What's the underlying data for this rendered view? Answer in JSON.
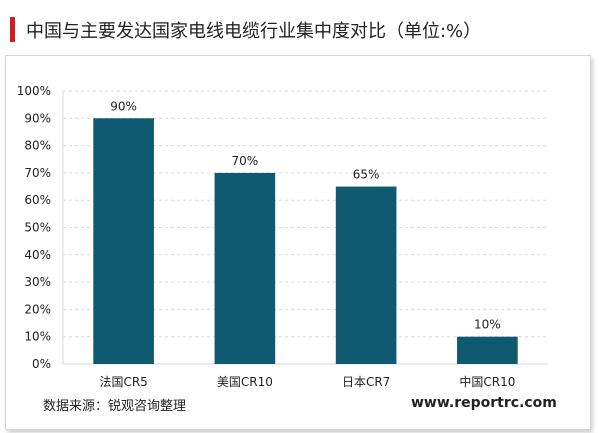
{
  "header": {
    "title": "中国与主要发达国家电线电缆行业集中度对比（单位:%）"
  },
  "footer": {
    "source": "数据来源：锐观咨询整理",
    "website": "www.reportrc.com"
  },
  "colors": {
    "bar": "#0f5a70",
    "grid": "#d9d9d9",
    "title_accent": "#cc1f1f"
  },
  "chart_data": {
    "type": "bar",
    "title": "中国与主要发达国家电线电缆行业集中度对比（单位:%）",
    "categories": [
      "法国CR5",
      "美国CR10",
      "日本CR7",
      "中国CR10"
    ],
    "values": [
      90,
      70,
      65,
      10
    ],
    "data_labels": [
      "90%",
      "70%",
      "65%",
      "10%"
    ],
    "y_ticks": [
      "0%",
      "10%",
      "20%",
      "30%",
      "40%",
      "50%",
      "60%",
      "70%",
      "80%",
      "90%",
      "100%"
    ],
    "ylim": [
      0,
      100
    ],
    "grid": true,
    "legend": "none"
  }
}
